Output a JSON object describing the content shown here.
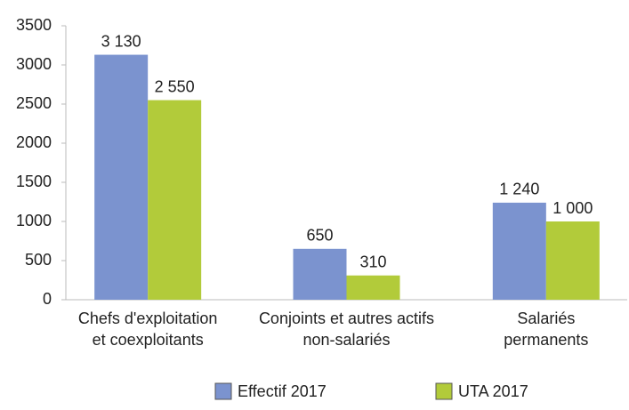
{
  "chart_data": {
    "type": "bar",
    "categories": [
      [
        "Chefs d'exploitation",
        "et coexploitants"
      ],
      [
        "Conjoints et autres actifs",
        "non-salariés"
      ],
      [
        "Salariés",
        "permanents"
      ]
    ],
    "series": [
      {
        "name": "Effectif 2017",
        "color": "#7b93cf",
        "values": [
          3130,
          650,
          1240
        ],
        "value_labels": [
          "3 130",
          "650",
          "1 240"
        ]
      },
      {
        "name": "UTA 2017",
        "color": "#b2cb3a",
        "values": [
          2550,
          310,
          1000
        ],
        "value_labels": [
          "2 550",
          "310",
          "1 000"
        ]
      }
    ],
    "ylim": [
      0,
      3500
    ],
    "yticks": [
      0,
      500,
      1000,
      1500,
      2000,
      2500,
      3000,
      3500
    ],
    "grid": false,
    "legend": "bottom"
  }
}
